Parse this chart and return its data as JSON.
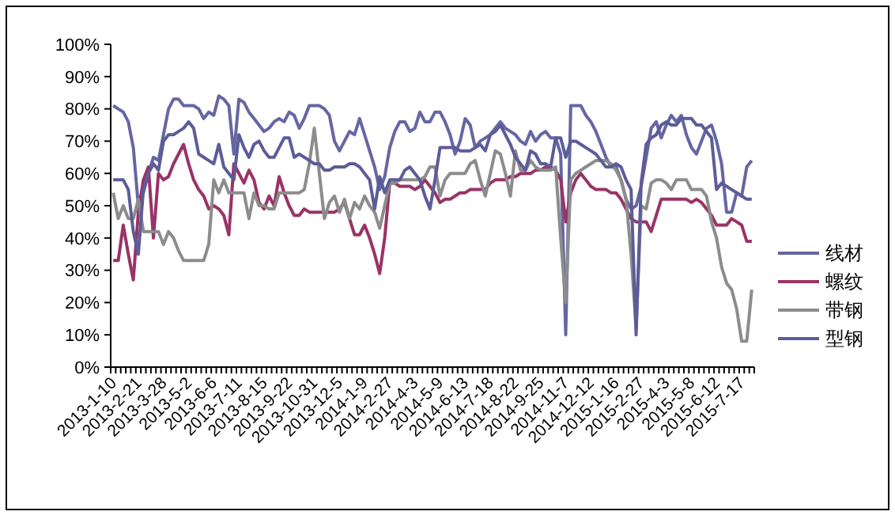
{
  "chart_data": {
    "type": "line",
    "categories": [
      "2013-1-10",
      null,
      null,
      null,
      null,
      "2013-2-21",
      null,
      null,
      null,
      null,
      "2013-3-28",
      null,
      null,
      null,
      null,
      "2013-5-2",
      null,
      null,
      null,
      null,
      "2013-6-6",
      null,
      null,
      null,
      null,
      "2013-7-11",
      null,
      null,
      null,
      null,
      "2013-8-15",
      null,
      null,
      null,
      null,
      "2013-9-22",
      null,
      null,
      null,
      null,
      "2013-10-31",
      null,
      null,
      null,
      null,
      "2013-12-5",
      null,
      null,
      null,
      null,
      "2014-1-9",
      null,
      null,
      null,
      null,
      "2014-2-27",
      null,
      null,
      null,
      null,
      "2014-4-3",
      null,
      null,
      null,
      null,
      "2014-5-9",
      null,
      null,
      null,
      null,
      "2014-6-13",
      null,
      null,
      null,
      null,
      "2014-7-18",
      null,
      null,
      null,
      null,
      "2014-8-22",
      null,
      null,
      null,
      null,
      "2014-9-25",
      null,
      null,
      null,
      null,
      "2014-11-7",
      null,
      null,
      null,
      null,
      "2014-12-12",
      null,
      null,
      null,
      null,
      "2015-1-16",
      null,
      null,
      null,
      null,
      "2015-2-27",
      null,
      null,
      null,
      null,
      "2015-4-3",
      null,
      null,
      null,
      null,
      "2015-5-8",
      null,
      null,
      null,
      null,
      "2015-6-12",
      null,
      null,
      null,
      null,
      "2015-7-17",
      null,
      null
    ],
    "series": [
      {
        "name": "线材",
        "color": "#6666a3",
        "values": [
          81,
          80,
          79,
          76,
          68,
          50,
          54,
          60,
          65,
          64,
          72,
          80,
          83,
          83,
          81,
          81,
          81,
          80,
          77,
          79,
          78,
          84,
          83,
          81,
          66,
          83,
          82,
          79,
          77,
          75,
          73,
          74,
          76,
          77,
          76,
          79,
          78,
          74,
          77,
          81,
          81,
          81,
          80,
          78,
          70,
          67,
          70,
          73,
          72,
          77,
          72,
          67,
          62,
          55,
          59,
          68,
          73,
          76,
          76,
          73,
          74,
          79,
          76,
          76,
          79,
          79,
          76,
          72,
          66,
          70,
          77,
          75,
          68,
          70,
          71,
          72,
          74,
          76,
          74,
          73,
          72,
          70,
          69,
          73,
          70,
          72,
          73,
          71,
          71,
          66,
          10,
          81,
          81,
          81,
          78,
          76,
          73,
          69,
          65,
          62,
          62,
          58,
          52,
          49,
          50,
          56,
          65,
          74,
          76,
          71,
          75,
          78,
          76,
          78,
          72,
          68,
          66,
          70,
          74,
          75,
          70,
          63,
          48,
          48,
          54,
          53,
          62,
          64
        ]
      },
      {
        "name": "螺纹",
        "color": "#993366",
        "values": [
          33,
          33,
          44,
          35,
          27,
          48,
          58,
          62,
          40,
          60,
          58,
          59,
          63,
          66,
          69,
          63,
          58,
          55,
          53,
          49,
          50,
          49,
          47,
          41,
          63,
          60,
          57,
          61,
          58,
          51,
          49,
          53,
          50,
          59,
          54,
          50,
          47,
          47,
          49,
          48,
          48,
          48,
          48,
          48,
          48,
          49,
          51,
          46,
          41,
          41,
          44,
          40,
          35,
          29,
          40,
          57,
          57,
          56,
          56,
          56,
          55,
          56,
          58,
          56,
          54,
          51,
          52,
          52,
          53,
          54,
          54,
          55,
          55,
          55,
          55,
          57,
          58,
          58,
          58,
          59,
          59,
          60,
          60,
          60,
          61,
          61,
          62,
          62,
          61,
          58,
          45,
          54,
          58,
          60,
          58,
          56,
          55,
          55,
          55,
          54,
          54,
          52,
          49,
          46,
          45,
          45,
          45,
          42,
          47,
          52,
          52,
          52,
          52,
          52,
          52,
          51,
          52,
          51,
          49,
          47,
          44,
          44,
          44,
          46,
          45,
          44,
          39,
          39
        ]
      },
      {
        "name": "带钢",
        "color": "#8c8c8c",
        "values": [
          54,
          46,
          50,
          46,
          46,
          52,
          42,
          42,
          42,
          42,
          38,
          42,
          40,
          36,
          33,
          33,
          33,
          33,
          33,
          38,
          58,
          54,
          58,
          54,
          54,
          54,
          54,
          46,
          54,
          50,
          50,
          49,
          49,
          54,
          54,
          54,
          54,
          54,
          55,
          63,
          74,
          60,
          46,
          51,
          53,
          48,
          52,
          46,
          51,
          49,
          53,
          50,
          48,
          43,
          50,
          57,
          57,
          58,
          58,
          58,
          58,
          58,
          59,
          62,
          62,
          53,
          58,
          60,
          60,
          60,
          60,
          63,
          64,
          58,
          53,
          60,
          67,
          66,
          60,
          53,
          67,
          61,
          61,
          64,
          62,
          61,
          61,
          61,
          62,
          40,
          20,
          58,
          60,
          61,
          62,
          63,
          64,
          64,
          64,
          63,
          61,
          58,
          52,
          35,
          12,
          50,
          49,
          57,
          58,
          58,
          57,
          55,
          58,
          58,
          58,
          55,
          55,
          55,
          53,
          45,
          40,
          31,
          26,
          24,
          18,
          8,
          8,
          24
        ]
      },
      {
        "name": "型钢",
        "color": "#5c5c99",
        "values": [
          58,
          58,
          58,
          55,
          42,
          35,
          55,
          60,
          63,
          61,
          70,
          72,
          72,
          73,
          74,
          76,
          74,
          66,
          65,
          64,
          63,
          69,
          62,
          60,
          58,
          72,
          68,
          65,
          69,
          70,
          67,
          65,
          65,
          68,
          71,
          71,
          65,
          66,
          65,
          64,
          63,
          63,
          61,
          61,
          62,
          62,
          62,
          63,
          63,
          62,
          60,
          58,
          49,
          59,
          54,
          58,
          58,
          58,
          61,
          62,
          60,
          58,
          53,
          49,
          58,
          68,
          68,
          68,
          68,
          67,
          67,
          67,
          68,
          69,
          67,
          72,
          73,
          75,
          72,
          69,
          65,
          63,
          61,
          67,
          66,
          63,
          63,
          62,
          71,
          71,
          65,
          70,
          70,
          69,
          68,
          67,
          66,
          64,
          62,
          62,
          63,
          62,
          58,
          55,
          10,
          57,
          69,
          71,
          72,
          75,
          76,
          75,
          75,
          77,
          77,
          77,
          75,
          75,
          73,
          71,
          55,
          57,
          56,
          55,
          54,
          53,
          52,
          52
        ]
      }
    ],
    "ylim": [
      0,
      100
    ],
    "yticks": [
      {
        "value": 0,
        "label": "0%"
      },
      {
        "value": 10,
        "label": "10%"
      },
      {
        "value": 20,
        "label": "20%"
      },
      {
        "value": 30,
        "label": "30%"
      },
      {
        "value": 40,
        "label": "40%"
      },
      {
        "value": 50,
        "label": "50%"
      },
      {
        "value": 60,
        "label": "60%"
      },
      {
        "value": 70,
        "label": "70%"
      },
      {
        "value": 80,
        "label": "80%"
      },
      {
        "value": 90,
        "label": "90%"
      },
      {
        "value": 100,
        "label": "100%"
      }
    ],
    "legend": "right"
  }
}
